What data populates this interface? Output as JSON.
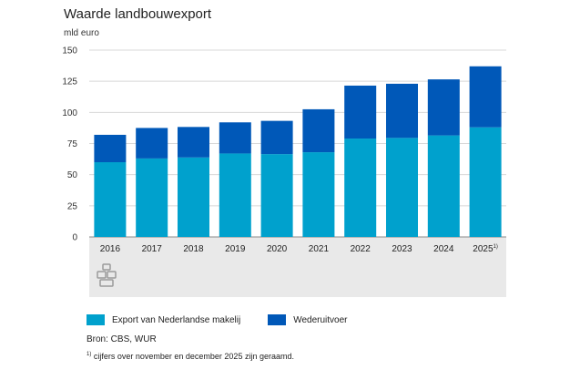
{
  "title": "Waarde landbouwexport",
  "unit": "mld euro",
  "colors": {
    "export": "#00a1cd",
    "wederuitvoer": "#0058b8",
    "band": "#e9e9e9",
    "grid": "#d8d8d8"
  },
  "chart_data": {
    "type": "bar",
    "stacked": true,
    "categories": [
      "2016",
      "2017",
      "2018",
      "2019",
      "2020",
      "2021",
      "2022",
      "2023",
      "2024",
      "2025"
    ],
    "category_note_marker": "1)",
    "series": [
      {
        "name": "Export van Nederlandse makelij",
        "values": [
          60.0,
          63.0,
          63.8,
          67.0,
          66.5,
          68.0,
          79.0,
          79.5,
          81.5,
          88.0
        ]
      },
      {
        "name": "Wederuitvoer",
        "values": [
          22.0,
          24.5,
          24.5,
          25.0,
          26.7,
          34.5,
          42.5,
          43.5,
          45.0,
          49.0
        ]
      }
    ],
    "yticks": [
      "0",
      "25",
      "50",
      "75",
      "100",
      "125",
      "150"
    ],
    "ylim": [
      0,
      150
    ],
    "grid": true
  },
  "legend": {
    "export": "Export van Nederlandse makelij",
    "wederuitvoer": "Wederuitvoer"
  },
  "source": "Bron: CBS, WUR",
  "footnote": {
    "marker": "1)",
    "text": "cijfers over november en december 2025 zijn geraamd."
  },
  "logo_icon": "cbs-logo-icon"
}
